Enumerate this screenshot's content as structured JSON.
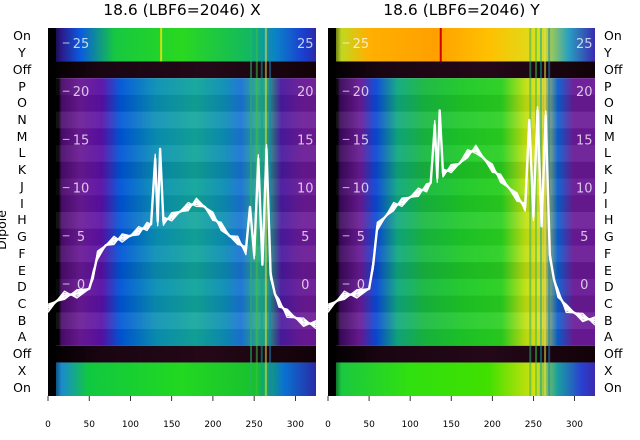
{
  "chart_data": [
    {
      "type": "heatmap",
      "panel": "X",
      "title": "18.6 (LBF6=2046) X",
      "xlabel": "",
      "ylabel": "Dipole",
      "xlim": [
        0,
        325
      ],
      "x_ticks": [
        0,
        50,
        100,
        150,
        200,
        250,
        300
      ],
      "rows_bottom_to_top": [
        "On",
        "X",
        "Off",
        "A",
        "B",
        "C",
        "D",
        "E",
        "F",
        "G",
        "H",
        "I",
        "J",
        "K",
        "L",
        "M",
        "N",
        "O",
        "P",
        "Off",
        "Y",
        "On"
      ],
      "overlay_y_ticks": [
        0,
        5,
        10,
        15,
        20,
        25
      ],
      "overlay_line": {
        "x": [
          0,
          10,
          20,
          35,
          50,
          55,
          60,
          70,
          80,
          90,
          100,
          110,
          120,
          125,
          130,
          133,
          136,
          140,
          150,
          160,
          170,
          180,
          190,
          200,
          210,
          220,
          230,
          240,
          245,
          250,
          255,
          260,
          265,
          270,
          275,
          280,
          290,
          300,
          310,
          325
        ],
        "y": [
          -2.5,
          -1.8,
          -1.2,
          -1.0,
          -0.5,
          1.0,
          3.0,
          4.0,
          4.5,
          4.8,
          5.0,
          5.5,
          6.0,
          6.2,
          13.0,
          6.5,
          14.0,
          6.5,
          7.0,
          7.5,
          8.0,
          8.5,
          8.0,
          7.0,
          6.0,
          5.0,
          4.5,
          3.5,
          8.0,
          3.0,
          13.0,
          2.0,
          14.0,
          1.0,
          -1.0,
          -2.0,
          -3.0,
          -3.5,
          -4.0,
          -4.2
        ]
      }
    },
    {
      "type": "heatmap",
      "panel": "Y",
      "title": "18.6 (LBF6=2046) Y",
      "xlabel": "",
      "ylabel": "",
      "xlim": [
        0,
        325
      ],
      "x_ticks": [
        0,
        50,
        100,
        150,
        200,
        250,
        300
      ],
      "rows_bottom_to_top": [
        "On",
        "X",
        "Off",
        "A",
        "B",
        "C",
        "D",
        "E",
        "F",
        "G",
        "H",
        "I",
        "J",
        "K",
        "L",
        "M",
        "N",
        "O",
        "P",
        "Off",
        "Y",
        "On"
      ],
      "overlay_y_ticks": [
        0,
        5,
        10,
        15,
        20,
        25
      ],
      "overlay_line": {
        "x": [
          0,
          10,
          20,
          35,
          50,
          55,
          60,
          70,
          80,
          90,
          100,
          110,
          120,
          125,
          130,
          133,
          136,
          140,
          150,
          160,
          170,
          180,
          190,
          200,
          210,
          220,
          230,
          240,
          245,
          250,
          255,
          260,
          265,
          270,
          275,
          280,
          290,
          300,
          310,
          325
        ],
        "y": [
          -2.5,
          -1.8,
          -1.2,
          -1.0,
          -0.5,
          2.0,
          6.0,
          7.0,
          8.0,
          8.5,
          9.0,
          9.5,
          10.0,
          10.5,
          16.5,
          11.0,
          18.0,
          11.5,
          12.0,
          12.5,
          13.5,
          14.0,
          13.0,
          12.0,
          11.0,
          10.0,
          9.0,
          8.0,
          17.0,
          7.0,
          18.0,
          6.0,
          17.5,
          3.0,
          0.5,
          -1.0,
          -2.5,
          -3.0,
          -3.5,
          -3.8
        ]
      }
    }
  ]
}
